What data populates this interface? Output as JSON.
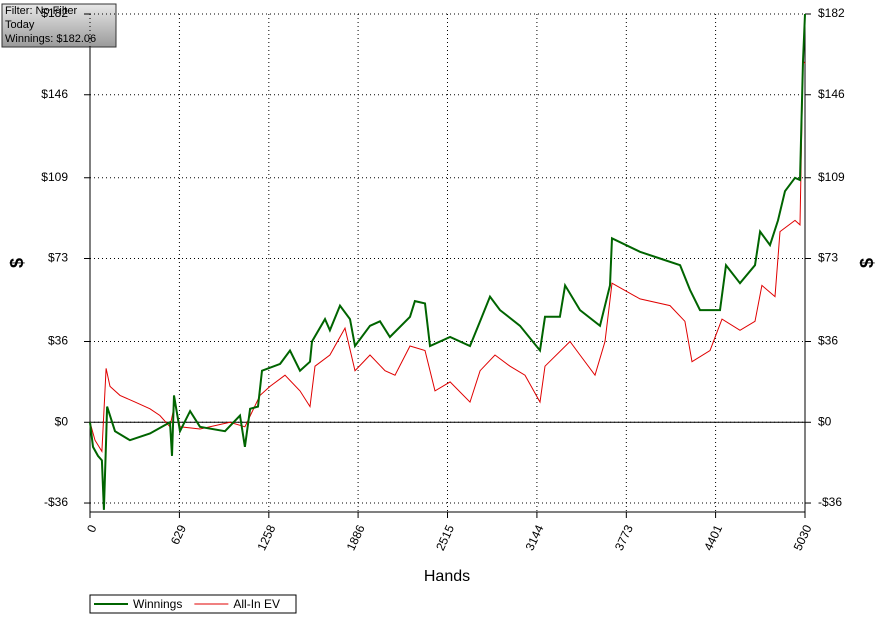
{
  "chart_data": {
    "type": "line",
    "info": [
      "Filter: No Filter",
      "Today",
      "Winnings: $182.06"
    ],
    "x_label": "Hands",
    "y_label": "$",
    "y2_label": "$",
    "xlim": [
      0,
      5030
    ],
    "ylim": [
      -40,
      182
    ],
    "xticks": [
      0,
      629,
      1258,
      1886,
      2515,
      3144,
      3773,
      4401,
      5030
    ],
    "yticks": [
      {
        "value": -36,
        "label": "-$36"
      },
      {
        "value": 0,
        "label": "$0"
      },
      {
        "value": 36,
        "label": "$36"
      },
      {
        "value": 73,
        "label": "$73"
      },
      {
        "value": 109,
        "label": "$109"
      },
      {
        "value": 146,
        "label": "$146"
      },
      {
        "value": 182,
        "label": "$182"
      }
    ],
    "grid": true,
    "legend": "bottom-left",
    "series": [
      {
        "name": "Winnings",
        "color": "#006400",
        "x": [
          0,
          21,
          56,
          84,
          98,
          113,
          120,
          176,
          281,
          422,
          563,
          577,
          591,
          633,
          704,
          774,
          950,
          1055,
          1090,
          1126,
          1182,
          1210,
          1337,
          1407,
          1477,
          1548,
          1562,
          1653,
          1688,
          1759,
          1829,
          1864,
          1970,
          2040,
          2110,
          2251,
          2286,
          2357,
          2392,
          2533,
          2673,
          2744,
          2814,
          2884,
          3025,
          3166,
          3201,
          3306,
          3342,
          3447,
          3588,
          3658,
          3672,
          3869,
          4010,
          4151,
          4221,
          4291,
          4432,
          4474,
          4573,
          4678,
          4714,
          4784,
          4840,
          4889,
          4960,
          4995,
          5016,
          5030
        ],
        "values": [
          0,
          -11,
          -15,
          -17,
          -39,
          -8,
          7,
          -4,
          -8,
          -5,
          0,
          -15,
          12,
          -4,
          5,
          -2,
          -4,
          3,
          -11,
          6,
          7,
          23,
          26,
          32,
          23,
          27,
          36,
          46,
          41,
          52,
          46,
          34,
          43,
          45,
          38,
          47,
          54,
          53,
          34,
          38,
          34,
          45,
          56,
          50,
          43,
          32,
          47,
          47,
          61,
          50,
          43,
          61,
          82,
          76,
          73,
          70,
          59,
          50,
          50,
          70,
          62,
          70,
          85,
          79,
          90,
          103,
          109,
          108,
          161,
          182
        ]
      },
      {
        "name": "All-In EV",
        "color": "#e00000",
        "x": [
          0,
          35,
          84,
          113,
          141,
          211,
          317,
          422,
          492,
          563,
          598,
          633,
          774,
          985,
          1090,
          1196,
          1266,
          1372,
          1477,
          1548,
          1583,
          1688,
          1794,
          1864,
          1970,
          2075,
          2146,
          2251,
          2357,
          2427,
          2533,
          2673,
          2744,
          2849,
          2955,
          3060,
          3166,
          3201,
          3377,
          3447,
          3553,
          3623,
          3672,
          3869,
          4080,
          4185,
          4235,
          4362,
          4446,
          4573,
          4678,
          4727,
          4819,
          4854,
          4960,
          4995,
          5016,
          5030
        ],
        "values": [
          0,
          -8,
          -13,
          24,
          16,
          12,
          9,
          6,
          3,
          -2,
          9,
          -2,
          -3,
          0,
          -2,
          12,
          16,
          21,
          14,
          7,
          25,
          30,
          42,
          23,
          30,
          23,
          21,
          34,
          32,
          14,
          18,
          9,
          23,
          30,
          25,
          21,
          9,
          25,
          36,
          30,
          21,
          36,
          62,
          55,
          52,
          45,
          27,
          32,
          46,
          41,
          45,
          61,
          56,
          85,
          90,
          88,
          161,
          160
        ]
      }
    ]
  }
}
